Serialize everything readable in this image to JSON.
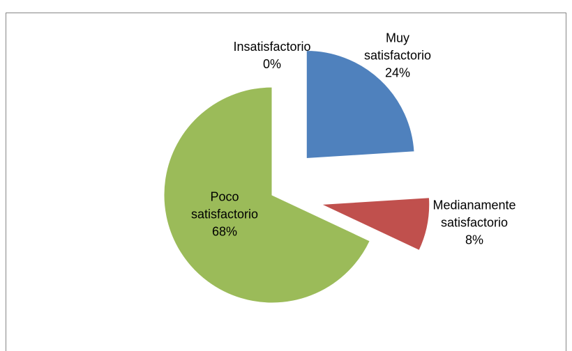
{
  "chart_data": {
    "type": "pie",
    "categories": [
      "Muy satisfactorio",
      "Medianamente satisfactorio",
      "Poco satisfactorio",
      "Insatisfactorio"
    ],
    "values": [
      24,
      8,
      68,
      0
    ],
    "value_labels": [
      "24%",
      "8%",
      "68%",
      "0%"
    ],
    "colors": [
      "#4f81bd",
      "#c0504d",
      "#9bbb59",
      "#8064a2"
    ],
    "exploded": [
      true,
      true,
      false,
      true
    ]
  }
}
